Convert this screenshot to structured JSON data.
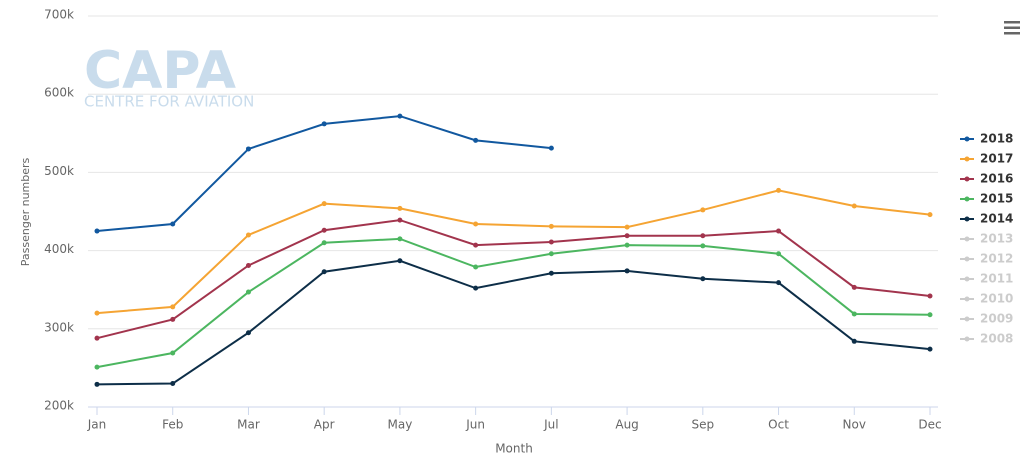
{
  "chart_data": {
    "type": "line",
    "watermark": {
      "title": "CAPA",
      "subtitle": "CENTRE FOR AVIATION"
    },
    "x_label": "Month",
    "y_label": "Passenger numbers",
    "categories": [
      "Jan",
      "Feb",
      "Mar",
      "Apr",
      "May",
      "Jun",
      "Jul",
      "Aug",
      "Sep",
      "Oct",
      "Nov",
      "Dec"
    ],
    "ylim": [
      200000,
      700000
    ],
    "yticks": [
      {
        "value": 200000,
        "label": "200k"
      },
      {
        "value": 300000,
        "label": "300k"
      },
      {
        "value": 400000,
        "label": "400k"
      },
      {
        "value": 500000,
        "label": "500k"
      },
      {
        "value": 600000,
        "label": "600k"
      },
      {
        "value": 700000,
        "label": "700k"
      }
    ],
    "grid": true,
    "legend": "right",
    "series": [
      {
        "name": "2018",
        "color": "#11589f",
        "values": [
          425000,
          434000,
          530000,
          562000,
          572000,
          541000,
          531000,
          null,
          null,
          null,
          null,
          null
        ]
      },
      {
        "name": "2017",
        "color": "#f5a433",
        "values": [
          320000,
          328000,
          420000,
          460000,
          454000,
          434000,
          431000,
          430000,
          452000,
          477000,
          457000,
          446000
        ]
      },
      {
        "name": "2016",
        "color": "#a2344d",
        "values": [
          288000,
          312000,
          381000,
          426000,
          439000,
          407000,
          411000,
          419000,
          419000,
          425000,
          353000,
          342000
        ]
      },
      {
        "name": "2015",
        "color": "#4cb660",
        "values": [
          251000,
          269000,
          347000,
          410000,
          415000,
          379000,
          396000,
          407000,
          406000,
          396000,
          319000,
          318000
        ]
      },
      {
        "name": "2014",
        "color": "#0d2e48",
        "values": [
          229000,
          230000,
          295000,
          373000,
          387000,
          352000,
          371000,
          374000,
          364000,
          359000,
          284000,
          274000
        ]
      },
      {
        "name": "2013",
        "color": "#cccccc",
        "visible": false
      },
      {
        "name": "2012",
        "color": "#cccccc",
        "visible": false
      },
      {
        "name": "2011",
        "color": "#cccccc",
        "visible": false
      },
      {
        "name": "2010",
        "color": "#cccccc",
        "visible": false
      },
      {
        "name": "2009",
        "color": "#cccccc",
        "visible": false
      },
      {
        "name": "2008",
        "color": "#cccccc",
        "visible": false
      }
    ]
  }
}
